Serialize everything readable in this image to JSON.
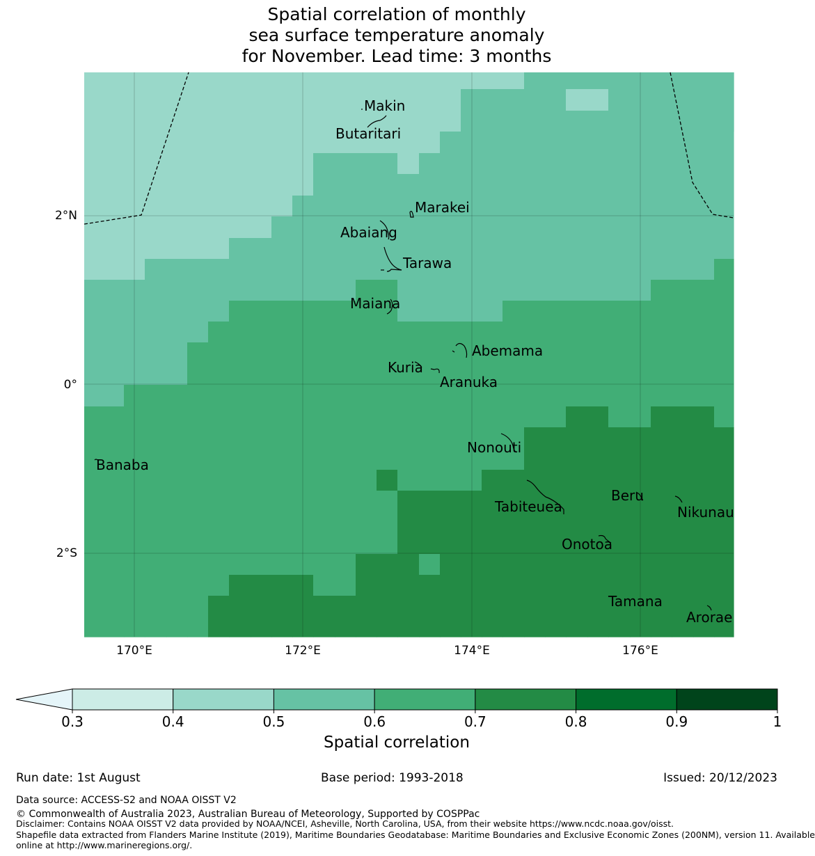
{
  "title": {
    "line1": "Spatial correlation of monthly",
    "line2": "sea surface temperature anomaly",
    "line3": "for November. Lead time: 3 months"
  },
  "map": {
    "x_ticks": [
      "170°E",
      "172°E",
      "174°E",
      "176°E"
    ],
    "y_ticks": [
      "2°N",
      "0°",
      "2°S"
    ],
    "places": [
      {
        "name": "Makin"
      },
      {
        "name": "Butaritari"
      },
      {
        "name": "Marakei"
      },
      {
        "name": "Abaiang"
      },
      {
        "name": "Tarawa"
      },
      {
        "name": "Maiana"
      },
      {
        "name": "Abemama"
      },
      {
        "name": "Kuria"
      },
      {
        "name": "Aranuka"
      },
      {
        "name": "Banaba"
      },
      {
        "name": "Nonouti"
      },
      {
        "name": "Beru"
      },
      {
        "name": "Tabiteuea"
      },
      {
        "name": "Nikunau"
      },
      {
        "name": "Onotoa"
      },
      {
        "name": "Tamana"
      },
      {
        "name": "Arorae"
      }
    ],
    "class_colors": [
      "#99d8c9",
      "#66c2a4",
      "#41ae76",
      "#238b45"
    ]
  },
  "colorbar": {
    "ticks": [
      "0.3",
      "0.4",
      "0.5",
      "0.6",
      "0.7",
      "0.8",
      "0.9",
      "1"
    ],
    "colors": [
      "#ccece6",
      "#99d8c9",
      "#66c2a4",
      "#41ae76",
      "#238b45",
      "#006d2c",
      "#00441b"
    ],
    "extend_color": "#e5f5f9",
    "label": "Spatial correlation"
  },
  "footer": {
    "run_date": "Run date: 1st August",
    "base_period": "Base period: 1993-2018",
    "issued": "Issued: 20/12/2023",
    "data_source": "Data source: ACCESS-S2 and NOAA OISST V2",
    "copyright": "© Commonwealth of Australia 2023, Australian Bureau of Meteorology, Supported by COSPPac",
    "disclaimer": "Disclaimer: Contains NOAA OISST V2 data provided by NOAA/NCEI, Asheville, North Carolina, USA, from their website https://www.ncdc.noaa.gov/oisst.",
    "shapefile_line1": "Shapefile data extracted from Flanders Marine Institute (2019), Maritime Boundaries Geodatabase: Maritime Boundaries and Exclusive Economic Zones (200NM), version 11. Available",
    "shapefile_line2": "online at http://www.marineregions.org/."
  }
}
